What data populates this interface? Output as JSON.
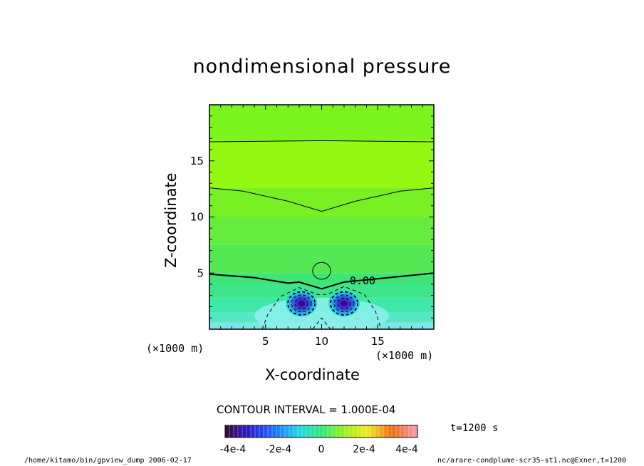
{
  "title": "nondimensional pressure",
  "chart_data": {
    "type": "heatmap",
    "title": "nondimensional pressure",
    "xlabel": "X-coordinate",
    "ylabel": "Z-coordinate",
    "x_unit_label": "(×1000 m)",
    "z_unit_label": "(×1000 m)",
    "xlim": [
      0,
      20
    ],
    "ylim": [
      0,
      20
    ],
    "x_ticks": [
      5,
      10,
      15
    ],
    "y_ticks": [
      5,
      10,
      15
    ],
    "zero_contour_label": "0.00",
    "contour_interval_text": "CONTOUR INTERVAL = 1.000E-04",
    "contour_interval": 0.0001,
    "colorbar": {
      "range": [
        -0.00045,
        0.00045
      ],
      "tick_labels": [
        "-4e-4",
        "-2e-4",
        "0",
        "2e-4",
        "4e-4"
      ],
      "tick_values": [
        -0.0004,
        -0.0002,
        0,
        0.0002,
        0.0004
      ]
    },
    "contours": {
      "zero": {
        "x": [
          0,
          4,
          7,
          8,
          10,
          12,
          14,
          17,
          20
        ],
        "z": [
          4.9,
          4.6,
          4.1,
          4.2,
          3.6,
          4.2,
          4.4,
          4.7,
          5.0
        ]
      },
      "positive_1": {
        "x": [
          0,
          3,
          7,
          10,
          13,
          17,
          20
        ],
        "z": [
          12.6,
          12.3,
          11.4,
          10.5,
          11.4,
          12.3,
          12.6
        ]
      },
      "positive_2": {
        "x": [
          0,
          5,
          10,
          15,
          20
        ],
        "z": [
          16.7,
          16.75,
          16.8,
          16.75,
          16.7
        ]
      },
      "positive_closed": {
        "x_center": 10,
        "z_center": 5.2,
        "x_radius": 0.8,
        "z_radius": 0.75
      },
      "negative_outer": {
        "x": [
          4.7,
          5.2,
          6.3,
          8,
          9.6,
          10.5,
          12,
          13.8,
          14.8,
          15.3
        ],
        "z": [
          0,
          1.3,
          2.9,
          3.7,
          3.1,
          3.1,
          3.8,
          3.1,
          1.6,
          0
        ]
      },
      "negative_inner": {
        "x": [
          9.2,
          10,
          10.8
        ],
        "z": [
          0,
          1.0,
          0
        ]
      }
    },
    "minima": [
      {
        "x": 8.2,
        "z": 2.3,
        "value": -0.00045
      },
      {
        "x": 12.0,
        "z": 2.3,
        "value": -0.00045
      }
    ],
    "time": "t=1200 s"
  },
  "footer": {
    "left": "/home/kitamo/bin/gpview_dump  2006-02-17",
    "right": "nc/arare-condplume-scr35-st1.nc@Exner,t=1200"
  }
}
